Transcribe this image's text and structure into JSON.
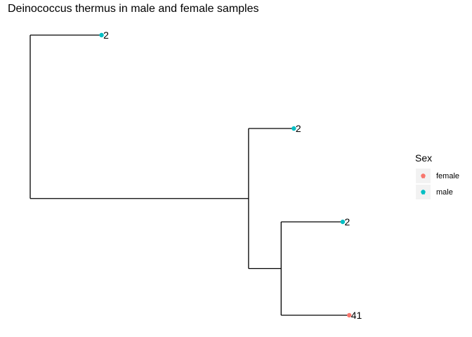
{
  "chart_data": {
    "type": "tree",
    "title": "Deinococcus thermus in male and female samples",
    "tips": [
      {
        "label": "2",
        "sex": "male"
      },
      {
        "label": "2",
        "sex": "male"
      },
      {
        "label": "2",
        "sex": "male"
      },
      {
        "label": "41",
        "sex": "female"
      }
    ],
    "tree": {
      "children": [
        {
          "tip": 0,
          "branch_length": 0.22
        },
        {
          "branch_length": 0.67,
          "children": [
            {
              "tip": 1,
              "branch_length": 0.14
            },
            {
              "branch_length": 0.1,
              "children": [
                {
                  "tip": 2,
                  "branch_length": 0.19
                },
                {
                  "tip": 3,
                  "branch_length": 0.21
                }
              ]
            }
          ]
        }
      ]
    },
    "legend": {
      "title": "Sex",
      "position": "right",
      "entries": [
        {
          "label": "female",
          "color": "#F8766D",
          "glyph": "a"
        },
        {
          "label": "male",
          "color": "#00BFC4",
          "glyph": "a"
        }
      ]
    },
    "colors": {
      "female": "#F8766D",
      "male": "#00BFC4"
    }
  }
}
